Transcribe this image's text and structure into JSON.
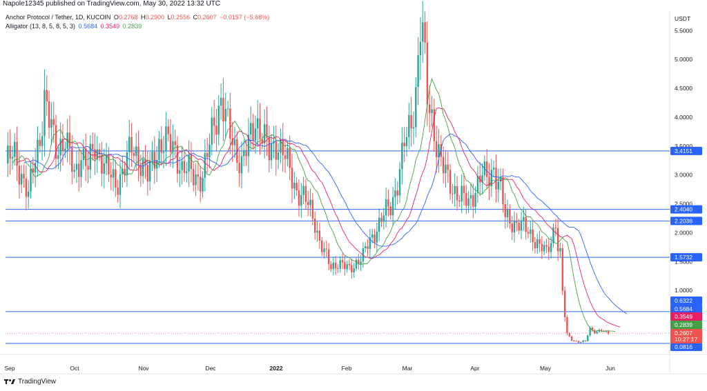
{
  "header": {
    "published": "Napole12345 published on TradingView.com, May 30, 2022 13:32 UTC"
  },
  "legend": {
    "symbol": "Anchor Protocol / Tether, 1D, KUCOIN",
    "o_label": "O",
    "o_value": "0.2768",
    "h_label": "H",
    "h_value": "0.2900",
    "l_label": "L",
    "l_value": "0.2556",
    "c_label": "C",
    "c_value": "0.2607",
    "change": "−0.0157 (−5.68%)",
    "indicator": "Alligator (13, 8, 5, 8, 5, 3)",
    "jaw_value": "0.5684",
    "teeth_value": "0.3549",
    "lips_value": "0.2839"
  },
  "colors": {
    "up": "#26a69a",
    "down": "#ef5350",
    "jaw": "#2962ff",
    "teeth": "#e91e63",
    "lips": "#43a047",
    "hline": "#2962ff",
    "current": "#ef5350"
  },
  "brand": {
    "name": "TradingView",
    "icon": "tradingview-logo-icon"
  },
  "chart_data": {
    "type": "candlestick",
    "currency": "USDT",
    "x_ticks": [
      "Sep",
      "Oct",
      "Nov",
      "Dec",
      "2022",
      "Feb",
      "Mar",
      "Apr",
      "May",
      "Jun"
    ],
    "y_ticks": [
      "5.5000",
      "5.0000",
      "4.5000",
      "4.0000",
      "3.5000",
      "3.0000",
      "2.5000",
      "2.0000",
      "1.5000",
      "1.0000"
    ],
    "y_tick_values": [
      5.5,
      5.0,
      4.5,
      4.0,
      3.5,
      3.0,
      2.5,
      2.0,
      1.5,
      1.0
    ],
    "ylim": [
      0.0,
      5.85
    ],
    "horizontal_levels": [
      {
        "label": "3.4151",
        "value": 3.4151
      },
      {
        "label": "2.4040",
        "value": 2.404
      },
      {
        "label": "2.2038",
        "value": 2.2038
      },
      {
        "label": "1.5732",
        "value": 1.5732
      },
      {
        "label": "0.6322",
        "value": 0.6322
      },
      {
        "label": "0.0816",
        "value": 0.0816
      }
    ],
    "price_tags": [
      {
        "label": "0.6322",
        "value": 0.6322,
        "color": "#2962ff"
      },
      {
        "label": "0.5684",
        "value": 0.5684,
        "color": "#2962ff"
      },
      {
        "label": "0.3549",
        "value": 0.3549,
        "color": "#e91e63"
      },
      {
        "label": "0.2839",
        "value": 0.2839,
        "color": "#43a047"
      },
      {
        "label": "0.0816",
        "value": 0.0816,
        "color": "#2962ff"
      }
    ],
    "current_price": {
      "price": "0.2607",
      "countdown": "10:27:17",
      "value": 0.2607
    },
    "close_path": [
      {
        "d": 0,
        "v": 3.2
      },
      {
        "d": 4,
        "v": 3.35
      },
      {
        "d": 8,
        "v": 2.9
      },
      {
        "d": 10,
        "v": 2.6
      },
      {
        "d": 12,
        "v": 3.1
      },
      {
        "d": 15,
        "v": 3.7
      },
      {
        "d": 17,
        "v": 4.3
      },
      {
        "d": 19,
        "v": 3.9
      },
      {
        "d": 22,
        "v": 3.5
      },
      {
        "d": 26,
        "v": 3.6
      },
      {
        "d": 30,
        "v": 3.0
      },
      {
        "d": 33,
        "v": 3.4
      },
      {
        "d": 36,
        "v": 3.1
      },
      {
        "d": 39,
        "v": 3.5
      },
      {
        "d": 42,
        "v": 3.3
      },
      {
        "d": 45,
        "v": 3.0
      },
      {
        "d": 48,
        "v": 2.85
      },
      {
        "d": 52,
        "v": 3.15
      },
      {
        "d": 55,
        "v": 3.45
      },
      {
        "d": 58,
        "v": 3.35
      },
      {
        "d": 62,
        "v": 2.95
      },
      {
        "d": 64,
        "v": 3.2
      },
      {
        "d": 67,
        "v": 3.55
      },
      {
        "d": 70,
        "v": 3.55
      },
      {
        "d": 74,
        "v": 3.45
      },
      {
        "d": 77,
        "v": 3.1
      },
      {
        "d": 80,
        "v": 3.05
      },
      {
        "d": 83,
        "v": 3.0
      },
      {
        "d": 86,
        "v": 2.95
      },
      {
        "d": 88,
        "v": 3.3
      },
      {
        "d": 91,
        "v": 3.95
      },
      {
        "d": 94,
        "v": 4.3
      },
      {
        "d": 97,
        "v": 3.8
      },
      {
        "d": 100,
        "v": 3.5
      },
      {
        "d": 103,
        "v": 3.2
      },
      {
        "d": 106,
        "v": 3.5
      },
      {
        "d": 109,
        "v": 4.0
      },
      {
        "d": 112,
        "v": 3.7
      },
      {
        "d": 115,
        "v": 3.35
      },
      {
        "d": 118,
        "v": 3.6
      },
      {
        "d": 121,
        "v": 3.4
      },
      {
        "d": 124,
        "v": 3.05
      },
      {
        "d": 127,
        "v": 2.75
      },
      {
        "d": 130,
        "v": 2.6
      },
      {
        "d": 133,
        "v": 2.4
      },
      {
        "d": 135,
        "v": 2.2
      },
      {
        "d": 137,
        "v": 1.85
      },
      {
        "d": 139,
        "v": 1.65
      },
      {
        "d": 142,
        "v": 1.4
      },
      {
        "d": 145,
        "v": 1.5
      },
      {
        "d": 148,
        "v": 1.4
      },
      {
        "d": 150,
        "v": 1.35
      },
      {
        "d": 153,
        "v": 1.5
      },
      {
        "d": 156,
        "v": 1.6
      },
      {
        "d": 159,
        "v": 1.85
      },
      {
        "d": 162,
        "v": 2.1
      },
      {
        "d": 165,
        "v": 2.3
      },
      {
        "d": 168,
        "v": 2.45
      },
      {
        "d": 171,
        "v": 2.9
      },
      {
        "d": 174,
        "v": 3.5
      },
      {
        "d": 177,
        "v": 3.9
      },
      {
        "d": 179,
        "v": 4.5
      },
      {
        "d": 181,
        "v": 5.6
      },
      {
        "d": 182,
        "v": 5.4
      },
      {
        "d": 184,
        "v": 4.3
      },
      {
        "d": 186,
        "v": 4.0
      },
      {
        "d": 188,
        "v": 3.6
      },
      {
        "d": 190,
        "v": 3.2
      },
      {
        "d": 193,
        "v": 2.9
      },
      {
        "d": 196,
        "v": 2.75
      },
      {
        "d": 199,
        "v": 2.6
      },
      {
        "d": 202,
        "v": 2.5
      },
      {
        "d": 205,
        "v": 2.8
      },
      {
        "d": 208,
        "v": 3.0
      },
      {
        "d": 210,
        "v": 2.9
      },
      {
        "d": 213,
        "v": 3.15
      },
      {
        "d": 216,
        "v": 2.75
      },
      {
        "d": 218,
        "v": 2.25
      },
      {
        "d": 221,
        "v": 2.2
      },
      {
        "d": 224,
        "v": 2.15
      },
      {
        "d": 227,
        "v": 2.05
      },
      {
        "d": 230,
        "v": 1.95
      },
      {
        "d": 233,
        "v": 1.75
      },
      {
        "d": 236,
        "v": 1.65
      },
      {
        "d": 238,
        "v": 1.9
      },
      {
        "d": 240,
        "v": 2.2
      },
      {
        "d": 241,
        "v": 1.75
      },
      {
        "d": 242,
        "v": 1.6
      },
      {
        "d": 243,
        "v": 0.95
      },
      {
        "d": 244,
        "v": 0.55
      },
      {
        "d": 245,
        "v": 0.25
      },
      {
        "d": 247,
        "v": 0.15
      },
      {
        "d": 250,
        "v": 0.1
      },
      {
        "d": 253,
        "v": 0.12
      },
      {
        "d": 255,
        "v": 0.35
      },
      {
        "d": 257,
        "v": 0.28
      },
      {
        "d": 260,
        "v": 0.3
      },
      {
        "d": 263,
        "v": 0.26
      }
    ]
  }
}
